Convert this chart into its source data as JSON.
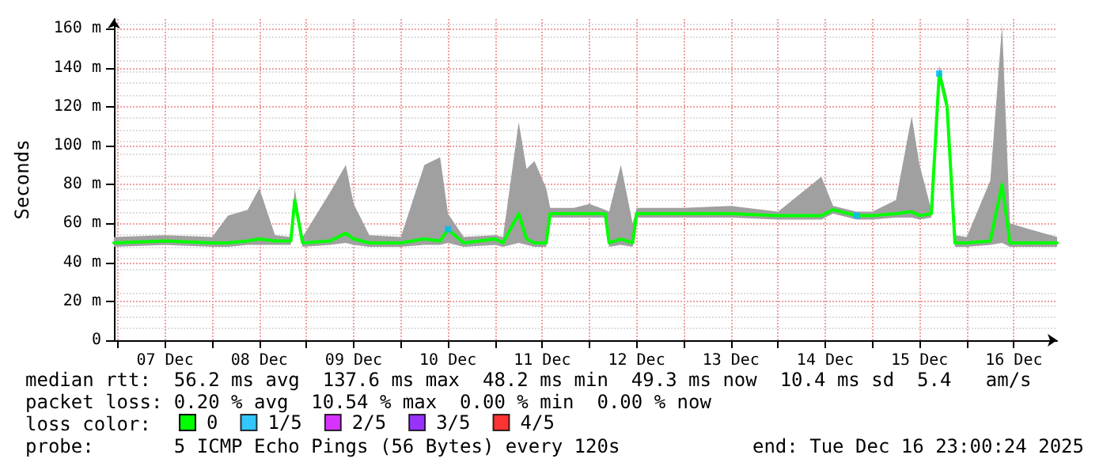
{
  "chart_data": {
    "type": "line",
    "ylabel": "Seconds",
    "legend_title": "loss color:",
    "legend": "bottom",
    "grid": true,
    "marker": "none",
    "line_style": "solid",
    "xlim": [
      "2025-12-06T23:00",
      "2025-12-16T23:00"
    ],
    "xticks": [
      {
        "value": "2025-12-07T00:00",
        "label": null
      },
      {
        "value": "2025-12-07T12:00",
        "label": "07 Dec"
      },
      {
        "value": "2025-12-08T00:00",
        "label": null
      },
      {
        "value": "2025-12-08T12:00",
        "label": "08 Dec"
      },
      {
        "value": "2025-12-09T00:00",
        "label": null
      },
      {
        "value": "2025-12-09T12:00",
        "label": "09 Dec"
      },
      {
        "value": "2025-12-10T00:00",
        "label": null
      },
      {
        "value": "2025-12-10T12:00",
        "label": "10 Dec"
      },
      {
        "value": "2025-12-11T00:00",
        "label": null
      },
      {
        "value": "2025-12-11T12:00",
        "label": "11 Dec"
      },
      {
        "value": "2025-12-12T00:00",
        "label": null
      },
      {
        "value": "2025-12-12T12:00",
        "label": "12 Dec"
      },
      {
        "value": "2025-12-13T00:00",
        "label": null
      },
      {
        "value": "2025-12-13T12:00",
        "label": "13 Dec"
      },
      {
        "value": "2025-12-14T00:00",
        "label": null
      },
      {
        "value": "2025-12-14T12:00",
        "label": "14 Dec"
      },
      {
        "value": "2025-12-15T00:00",
        "label": null
      },
      {
        "value": "2025-12-15T12:00",
        "label": "15 Dec"
      },
      {
        "value": "2025-12-16T00:00",
        "label": null
      },
      {
        "value": "2025-12-16T12:00",
        "label": "16 Dec"
      }
    ],
    "ylim": [
      0,
      165
    ],
    "yticks": [
      0,
      {
        "value": 20,
        "label": "20 m"
      },
      {
        "value": 40,
        "label": "40 m"
      },
      {
        "value": 60,
        "label": "60 m"
      },
      {
        "value": 80,
        "label": "80 m"
      },
      {
        "value": 100,
        "label": "100 m"
      },
      {
        "value": 120,
        "label": "120 m"
      },
      {
        "value": 140,
        "label": "140 m"
      },
      {
        "value": 160,
        "label": "160 m"
      }
    ],
    "series": [
      {
        "name": "0",
        "color": "#00ff00",
        "x": [
          "2025-12-06T23:00",
          "2025-12-07T12:00",
          "2025-12-08T00:00",
          "2025-12-08T04:00",
          "2025-12-08T09:00",
          "2025-12-08T12:00",
          "2025-12-08T16:00",
          "2025-12-08T20:00",
          "2025-12-08T21:00",
          "2025-12-08T23:00",
          "2025-12-09T06:00",
          "2025-12-09T10:00",
          "2025-12-09T12:00",
          "2025-12-09T16:00",
          "2025-12-10T00:00",
          "2025-12-10T06:00",
          "2025-12-10T10:00",
          "2025-12-10T12:00",
          "2025-12-10T16:00",
          "2025-12-11T00:00",
          "2025-12-11T02:00",
          "2025-12-11T06:00",
          "2025-12-11T08:00",
          "2025-12-11T10:00",
          "2025-12-11T13:00",
          "2025-12-11T14:00",
          "2025-12-11T20:00",
          "2025-12-12T00:00",
          "2025-12-12T04:00",
          "2025-12-12T05:00",
          "2025-12-12T08:00",
          "2025-12-12T11:00",
          "2025-12-12T12:00",
          "2025-12-13T00:00",
          "2025-12-13T12:00",
          "2025-12-14T00:00",
          "2025-12-14T11:00",
          "2025-12-14T14:00",
          "2025-12-14T20:00",
          "2025-12-15T00:00",
          "2025-12-15T06:00",
          "2025-12-15T10:00",
          "2025-12-15T12:00",
          "2025-12-15T15:00",
          "2025-12-15T17:00",
          "2025-12-15T19:00",
          "2025-12-15T21:00",
          "2025-12-16T00:00",
          "2025-12-16T06:00",
          "2025-12-16T09:00",
          "2025-12-16T11:00",
          "2025-12-16T16:00",
          "2025-12-16T23:00"
        ],
        "values": [
          50,
          51,
          50,
          50,
          51,
          52,
          51,
          51,
          72,
          50,
          51,
          55,
          52,
          50,
          50,
          52,
          51,
          57,
          50,
          52,
          50,
          65,
          52,
          50,
          50,
          65,
          65,
          65,
          65,
          50,
          52,
          50,
          65,
          65,
          65,
          64,
          64,
          67,
          64,
          64,
          65,
          66,
          64,
          65,
          137,
          120,
          50,
          50,
          51,
          80,
          50,
          50,
          50
        ],
        "lower": [
          48,
          49,
          48,
          48,
          49,
          49,
          49,
          49,
          70,
          48,
          49,
          50,
          49,
          48,
          48,
          49,
          49,
          50,
          48,
          49,
          48,
          50,
          49,
          48,
          48,
          63,
          63,
          63,
          63,
          48,
          49,
          48,
          63,
          63,
          63,
          62,
          62,
          65,
          62,
          62,
          63,
          63,
          62,
          63,
          135,
          118,
          48,
          48,
          49,
          50,
          48,
          48,
          48
        ],
        "upper": [
          53,
          54,
          53,
          64,
          67,
          78,
          54,
          53,
          78,
          53,
          76,
          90,
          70,
          54,
          53,
          90,
          94,
          65,
          53,
          54,
          53,
          112,
          88,
          92,
          78,
          68,
          68,
          70,
          67,
          66,
          90,
          60,
          68,
          68,
          69,
          66,
          84,
          69,
          66,
          66,
          72,
          115,
          90,
          67,
          141,
          125,
          54,
          53,
          82,
          162,
          60,
          57,
          53
        ]
      },
      {
        "name": "1/5",
        "color": "#00b8ff",
        "type": "scatter",
        "marker": "square",
        "x": [
          "2025-12-10T12:00",
          "2025-12-14T20:00",
          "2025-12-15T17:00"
        ],
        "values": [
          57,
          64,
          137
        ]
      },
      {
        "name": "2/5",
        "color": "#cc00ff",
        "type": "scatter",
        "marker": "square"
      },
      {
        "name": "3/5",
        "color": "#7e00ff",
        "type": "scatter",
        "marker": "square"
      },
      {
        "name": "4/5",
        "color": "#ff0000",
        "type": "scatter",
        "marker": "square"
      }
    ],
    "annotations": [
      "median rtt:  56.2 ms avg  137.6 ms max  48.2 ms min  49.3 ms now  10.4 ms sd  5.4   am/s",
      "packet loss: 0.20 % avg  10.54 % max  0.00 % min  0.00 % now",
      "probe:       5 ICMP Echo Pings (56 Bytes) every 120s",
      "end: Tue Dec 16 23:00:24 2025"
    ]
  }
}
